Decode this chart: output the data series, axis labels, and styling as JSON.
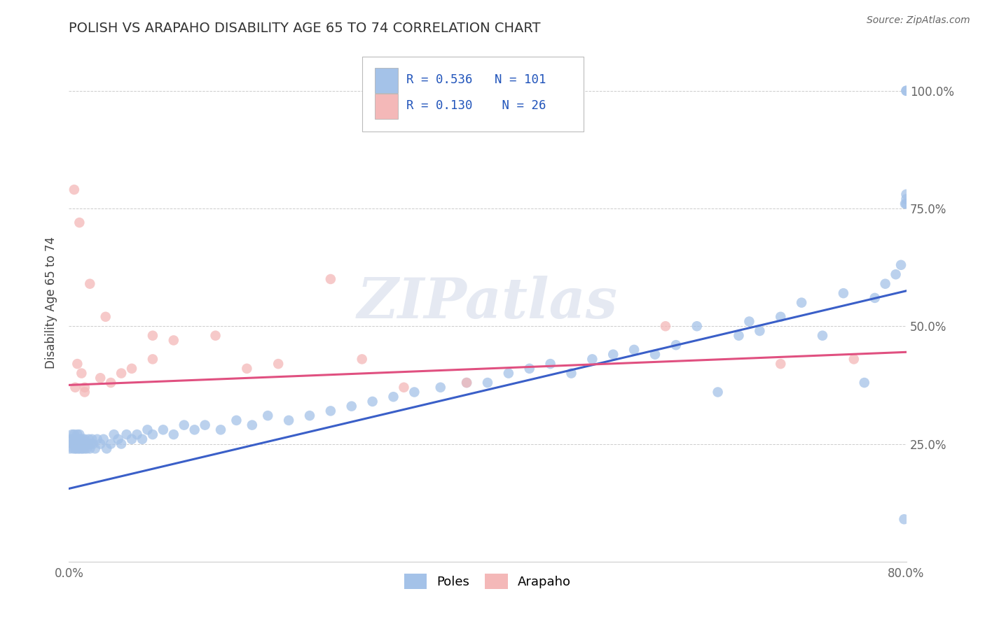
{
  "title": "POLISH VS ARAPAHO DISABILITY AGE 65 TO 74 CORRELATION CHART",
  "source": "Source: ZipAtlas.com",
  "ylabel": "Disability Age 65 to 74",
  "xlim": [
    0.0,
    0.8
  ],
  "ylim": [
    0.0,
    1.1
  ],
  "x_tick_positions": [
    0.0,
    0.2,
    0.4,
    0.6,
    0.8
  ],
  "x_tick_labels": [
    "0.0%",
    "",
    "",
    "",
    "80.0%"
  ],
  "y_tick_positions": [
    0.0,
    0.25,
    0.5,
    0.75,
    1.0
  ],
  "y_tick_labels": [
    "",
    "25.0%",
    "50.0%",
    "75.0%",
    "100.0%"
  ],
  "poles_color": "#a4c2e8",
  "arapaho_color": "#f4b8b8",
  "poles_line_color": "#3a5fc8",
  "arapaho_line_color": "#e05080",
  "legend_r_poles": "0.536",
  "legend_n_poles": "101",
  "legend_r_arapaho": "0.130",
  "legend_n_arapaho": "26",
  "poles_trend": [
    0.155,
    0.575
  ],
  "arapaho_trend": [
    0.375,
    0.445
  ],
  "watermark_text": "ZIPatlas",
  "background_color": "#ffffff",
  "grid_color": "#cccccc",
  "poles_x": [
    0.001,
    0.002,
    0.003,
    0.003,
    0.004,
    0.004,
    0.005,
    0.005,
    0.006,
    0.006,
    0.007,
    0.007,
    0.007,
    0.008,
    0.008,
    0.009,
    0.009,
    0.01,
    0.01,
    0.01,
    0.011,
    0.011,
    0.012,
    0.012,
    0.013,
    0.013,
    0.014,
    0.015,
    0.015,
    0.016,
    0.017,
    0.018,
    0.019,
    0.02,
    0.021,
    0.022,
    0.023,
    0.025,
    0.027,
    0.03,
    0.033,
    0.036,
    0.04,
    0.043,
    0.047,
    0.05,
    0.055,
    0.06,
    0.065,
    0.07,
    0.075,
    0.08,
    0.09,
    0.1,
    0.11,
    0.12,
    0.13,
    0.145,
    0.16,
    0.175,
    0.19,
    0.21,
    0.23,
    0.25,
    0.27,
    0.29,
    0.31,
    0.33,
    0.355,
    0.38,
    0.4,
    0.42,
    0.44,
    0.46,
    0.48,
    0.5,
    0.52,
    0.54,
    0.56,
    0.58,
    0.6,
    0.62,
    0.64,
    0.65,
    0.66,
    0.68,
    0.7,
    0.72,
    0.74,
    0.76,
    0.77,
    0.78,
    0.79,
    0.795,
    0.798,
    0.799,
    0.8,
    0.8,
    0.8,
    0.8,
    0.8
  ],
  "poles_y": [
    0.24,
    0.26,
    0.25,
    0.27,
    0.24,
    0.26,
    0.25,
    0.27,
    0.24,
    0.26,
    0.25,
    0.24,
    0.26,
    0.25,
    0.27,
    0.24,
    0.26,
    0.25,
    0.24,
    0.27,
    0.25,
    0.26,
    0.24,
    0.25,
    0.26,
    0.24,
    0.25,
    0.24,
    0.26,
    0.25,
    0.24,
    0.25,
    0.26,
    0.24,
    0.25,
    0.26,
    0.25,
    0.24,
    0.26,
    0.25,
    0.26,
    0.24,
    0.25,
    0.27,
    0.26,
    0.25,
    0.27,
    0.26,
    0.27,
    0.26,
    0.28,
    0.27,
    0.28,
    0.27,
    0.29,
    0.28,
    0.29,
    0.28,
    0.3,
    0.29,
    0.31,
    0.3,
    0.31,
    0.32,
    0.33,
    0.34,
    0.35,
    0.36,
    0.37,
    0.38,
    0.38,
    0.4,
    0.41,
    0.42,
    0.4,
    0.43,
    0.44,
    0.45,
    0.44,
    0.46,
    0.5,
    0.36,
    0.48,
    0.51,
    0.49,
    0.52,
    0.55,
    0.48,
    0.57,
    0.38,
    0.56,
    0.59,
    0.61,
    0.63,
    0.09,
    0.76,
    1.0,
    1.0,
    0.78,
    0.76,
    0.77
  ],
  "arapaho_x": [
    0.004,
    0.005,
    0.007,
    0.01,
    0.012,
    0.014,
    0.016,
    0.018,
    0.02,
    0.023,
    0.03,
    0.04,
    0.05,
    0.06,
    0.08,
    0.1,
    0.14,
    0.17,
    0.2,
    0.25,
    0.28,
    0.32,
    0.38,
    0.57,
    0.68,
    0.75
  ],
  "arapaho_y": [
    0.37,
    0.36,
    0.37,
    0.38,
    0.37,
    0.36,
    0.38,
    0.37,
    0.38,
    0.36,
    0.39,
    0.38,
    0.4,
    0.41,
    0.43,
    0.47,
    0.48,
    0.41,
    0.42,
    0.6,
    0.43,
    0.37,
    0.38,
    0.5,
    0.42,
    0.43
  ]
}
